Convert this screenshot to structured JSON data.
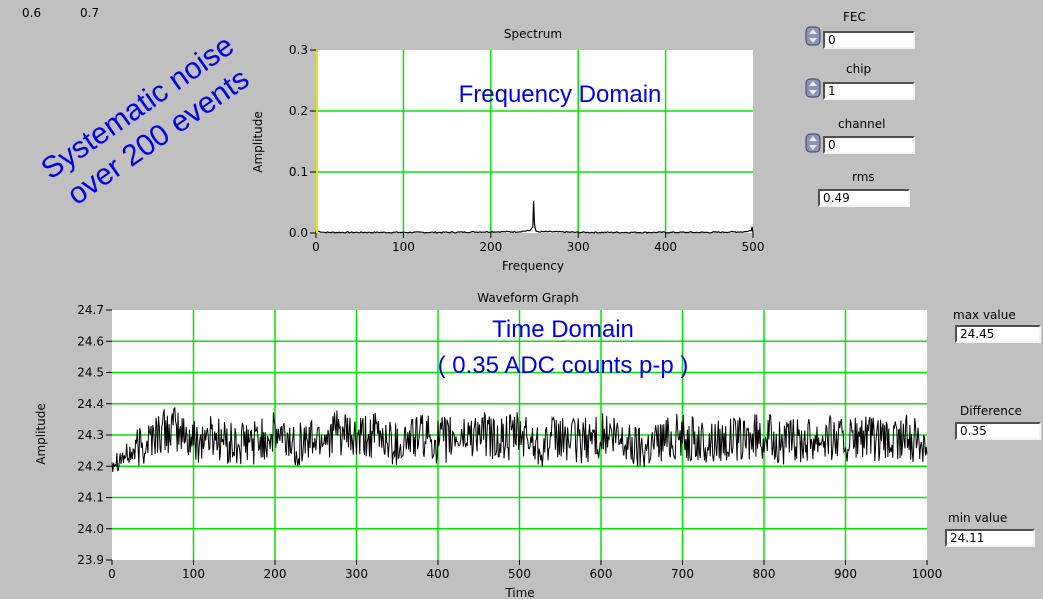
{
  "corner_labels": [
    "0.6",
    "0.7"
  ],
  "annotations": {
    "systematic_line1": "Systematic noise",
    "systematic_line2": "over 200 events",
    "frequency_domain": "Frequency Domain",
    "time_domain": "Time Domain",
    "time_domain_sub": "( 0.35 ADC counts p-p )"
  },
  "controls": {
    "fec": {
      "label": "FEC",
      "value": "0"
    },
    "chip": {
      "label": "chip",
      "value": "1"
    },
    "channel": {
      "label": "channel",
      "value": "0"
    },
    "rms": {
      "label": "rms",
      "value": "0.49"
    },
    "max_value": {
      "label": "max value",
      "value": "24.45"
    },
    "difference": {
      "label": "Difference",
      "value": "0.35"
    },
    "min_value": {
      "label": "min value",
      "value": "24.11"
    }
  },
  "colors": {
    "plot_bg": "#ffffff",
    "grid": "#00e600",
    "trace": "#000000",
    "annotation": "#0000e6",
    "panel": "#c0c0c0",
    "cursor": "#e6e600"
  },
  "chart_data": [
    {
      "type": "line",
      "title": "Spectrum",
      "xlabel": "Frequency",
      "ylabel": "Amplitude",
      "xlim": [
        0,
        500
      ],
      "ylim": [
        0.0,
        0.3
      ],
      "xticks": [
        0,
        100,
        200,
        300,
        400,
        500
      ],
      "yticks": [
        0.0,
        0.1,
        0.2,
        0.3
      ],
      "ytick_labels": [
        "0.0",
        "0.1",
        "0.2",
        "0.3"
      ],
      "grid": true,
      "series": [
        {
          "x": [
            0,
            1,
            2,
            10,
            50,
            100,
            150,
            200,
            230,
            245,
            248,
            249,
            250,
            251,
            252,
            255,
            270,
            300,
            350,
            400,
            450,
            490,
            498,
            499,
            500
          ],
          "y": [
            0.0,
            0.01,
            0.003,
            0.001,
            0.001,
            0.001,
            0.001,
            0.002,
            0.002,
            0.004,
            0.01,
            0.052,
            0.015,
            0.006,
            0.003,
            0.002,
            0.002,
            0.001,
            0.001,
            0.001,
            0.001,
            0.002,
            0.004,
            0.01,
            0.0
          ]
        }
      ]
    },
    {
      "type": "line",
      "title": "Waveform Graph",
      "xlabel": "Time",
      "ylabel": "Amplitude",
      "xlim": [
        0,
        1000
      ],
      "ylim": [
        23.9,
        24.7
      ],
      "xticks": [
        0,
        100,
        200,
        300,
        400,
        500,
        600,
        700,
        800,
        900,
        1000
      ],
      "yticks": [
        23.9,
        24.0,
        24.1,
        24.2,
        24.3,
        24.4,
        24.5,
        24.6,
        24.7
      ],
      "ytick_labels": [
        "23.9",
        "24.0",
        "24.1",
        "24.2",
        "24.3",
        "24.4",
        "24.5",
        "24.6",
        "24.7"
      ],
      "grid": true,
      "series": [
        {
          "x": [
            0,
            25,
            50,
            75,
            100,
            125,
            150,
            175,
            200,
            225,
            250,
            275,
            300,
            325,
            350,
            375,
            400,
            425,
            450,
            475,
            500,
            525,
            550,
            575,
            600,
            625,
            650,
            675,
            700,
            725,
            750,
            775,
            800,
            825,
            850,
            875,
            900,
            925,
            950,
            975,
            1000
          ],
          "y": [
            24.22,
            24.24,
            24.3,
            24.32,
            24.28,
            24.3,
            24.26,
            24.28,
            24.3,
            24.27,
            24.29,
            24.31,
            24.28,
            24.3,
            24.27,
            24.3,
            24.28,
            24.29,
            24.31,
            24.28,
            24.3,
            24.27,
            24.29,
            24.28,
            24.3,
            24.28,
            24.26,
            24.29,
            24.3,
            24.27,
            24.29,
            24.28,
            24.3,
            24.27,
            24.29,
            24.3,
            24.28,
            24.29,
            24.27,
            24.29,
            24.28
          ],
          "max": 24.45,
          "min": 24.11
        }
      ]
    }
  ]
}
